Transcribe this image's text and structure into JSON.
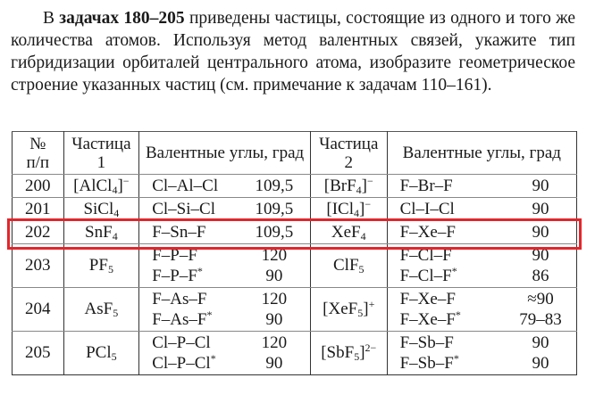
{
  "intro": {
    "prefix": "В ",
    "bold": "задачах 180–205",
    "rest": " приведены частицы, состоящие из одного и того же количества атомов. Используя метод валентных связей, укажите тип гибридизации орбиталей центрального атома, изобразите геометрическое строение указанных частиц (см. примечание к задачам 110–161)."
  },
  "table": {
    "headers": [
      "№\nп/п",
      "Частица\n1",
      "Валентные углы, град",
      "Частица\n2",
      "Валентные углы, град"
    ],
    "rows": [
      {
        "n": "200",
        "p1": [
          {
            "t": "[AlCl"
          },
          {
            "sub": "4"
          },
          {
            "t": "]"
          },
          {
            "sup": "−"
          }
        ],
        "a1": [
          {
            "b": [
              {
                "t": "Cl–Al–Cl"
              }
            ],
            "v": "109,5"
          }
        ],
        "p2": [
          {
            "t": "[BrF"
          },
          {
            "sub": "4"
          },
          {
            "t": "]"
          },
          {
            "sup": "−"
          }
        ],
        "a2": [
          {
            "b": [
              {
                "t": "F–Br–F"
              }
            ],
            "v": "90"
          }
        ]
      },
      {
        "n": "201",
        "p1": [
          {
            "t": "SiCl"
          },
          {
            "sub": "4"
          }
        ],
        "a1": [
          {
            "b": [
              {
                "t": "Cl–Si–Cl"
              }
            ],
            "v": "109,5"
          }
        ],
        "p2": [
          {
            "t": "[ICl"
          },
          {
            "sub": "4"
          },
          {
            "t": "]"
          },
          {
            "sup": "−"
          }
        ],
        "a2": [
          {
            "b": [
              {
                "t": "Cl–I–Cl"
              }
            ],
            "v": "90"
          }
        ]
      },
      {
        "n": "202",
        "p1": [
          {
            "t": "SnF"
          },
          {
            "sub": "4"
          }
        ],
        "a1": [
          {
            "b": [
              {
                "t": "F–Sn–F"
              }
            ],
            "v": "109,5"
          }
        ],
        "p2": [
          {
            "t": "XeF"
          },
          {
            "sub": "4"
          }
        ],
        "a2": [
          {
            "b": [
              {
                "t": "F–Xe–F"
              }
            ],
            "v": "90"
          }
        ]
      },
      {
        "n": "203",
        "p1": [
          {
            "t": "PF"
          },
          {
            "sub": "5"
          }
        ],
        "a1": [
          {
            "b": [
              {
                "t": "F–P–F"
              }
            ],
            "v": "120"
          },
          {
            "b": [
              {
                "t": "F–P–F"
              },
              {
                "sup": "*"
              }
            ],
            "v": "90"
          }
        ],
        "p2": [
          {
            "t": "ClF"
          },
          {
            "sub": "5"
          }
        ],
        "a2": [
          {
            "b": [
              {
                "t": "F–Cl–F"
              }
            ],
            "v": "90"
          },
          {
            "b": [
              {
                "t": "F–Cl–F"
              },
              {
                "sup": "*"
              }
            ],
            "v": "86"
          }
        ]
      },
      {
        "n": "204",
        "p1": [
          {
            "t": "AsF"
          },
          {
            "sub": "5"
          }
        ],
        "a1": [
          {
            "b": [
              {
                "t": "F–As–F"
              }
            ],
            "v": "120"
          },
          {
            "b": [
              {
                "t": "F–As–F"
              },
              {
                "sup": "*"
              }
            ],
            "v": "90"
          }
        ],
        "p2": [
          {
            "t": "[XeF"
          },
          {
            "sub": "5"
          },
          {
            "t": "]"
          },
          {
            "sup": "+"
          }
        ],
        "a2": [
          {
            "b": [
              {
                "t": "F–Xe–F"
              }
            ],
            "v": "≈90"
          },
          {
            "b": [
              {
                "t": "F–Xe–F"
              },
              {
                "sup": "*"
              }
            ],
            "v": "79–83"
          }
        ]
      },
      {
        "n": "205",
        "p1": [
          {
            "t": "PCl"
          },
          {
            "sub": "5"
          }
        ],
        "a1": [
          {
            "b": [
              {
                "t": "Cl–P–Cl"
              }
            ],
            "v": "120"
          },
          {
            "b": [
              {
                "t": "Cl–P–Cl"
              },
              {
                "sup": "*"
              }
            ],
            "v": "90"
          }
        ],
        "p2": [
          {
            "t": "[SbF"
          },
          {
            "sub": "5"
          },
          {
            "t": "]"
          },
          {
            "sup": "2−"
          }
        ],
        "a2": [
          {
            "b": [
              {
                "t": "F–Sb–F"
              }
            ],
            "v": "90"
          },
          {
            "b": [
              {
                "t": "F–Sb–F"
              },
              {
                "sup": "*"
              }
            ],
            "v": "90"
          }
        ]
      }
    ]
  },
  "highlight": {
    "row": "202",
    "color": "#e2262c"
  }
}
